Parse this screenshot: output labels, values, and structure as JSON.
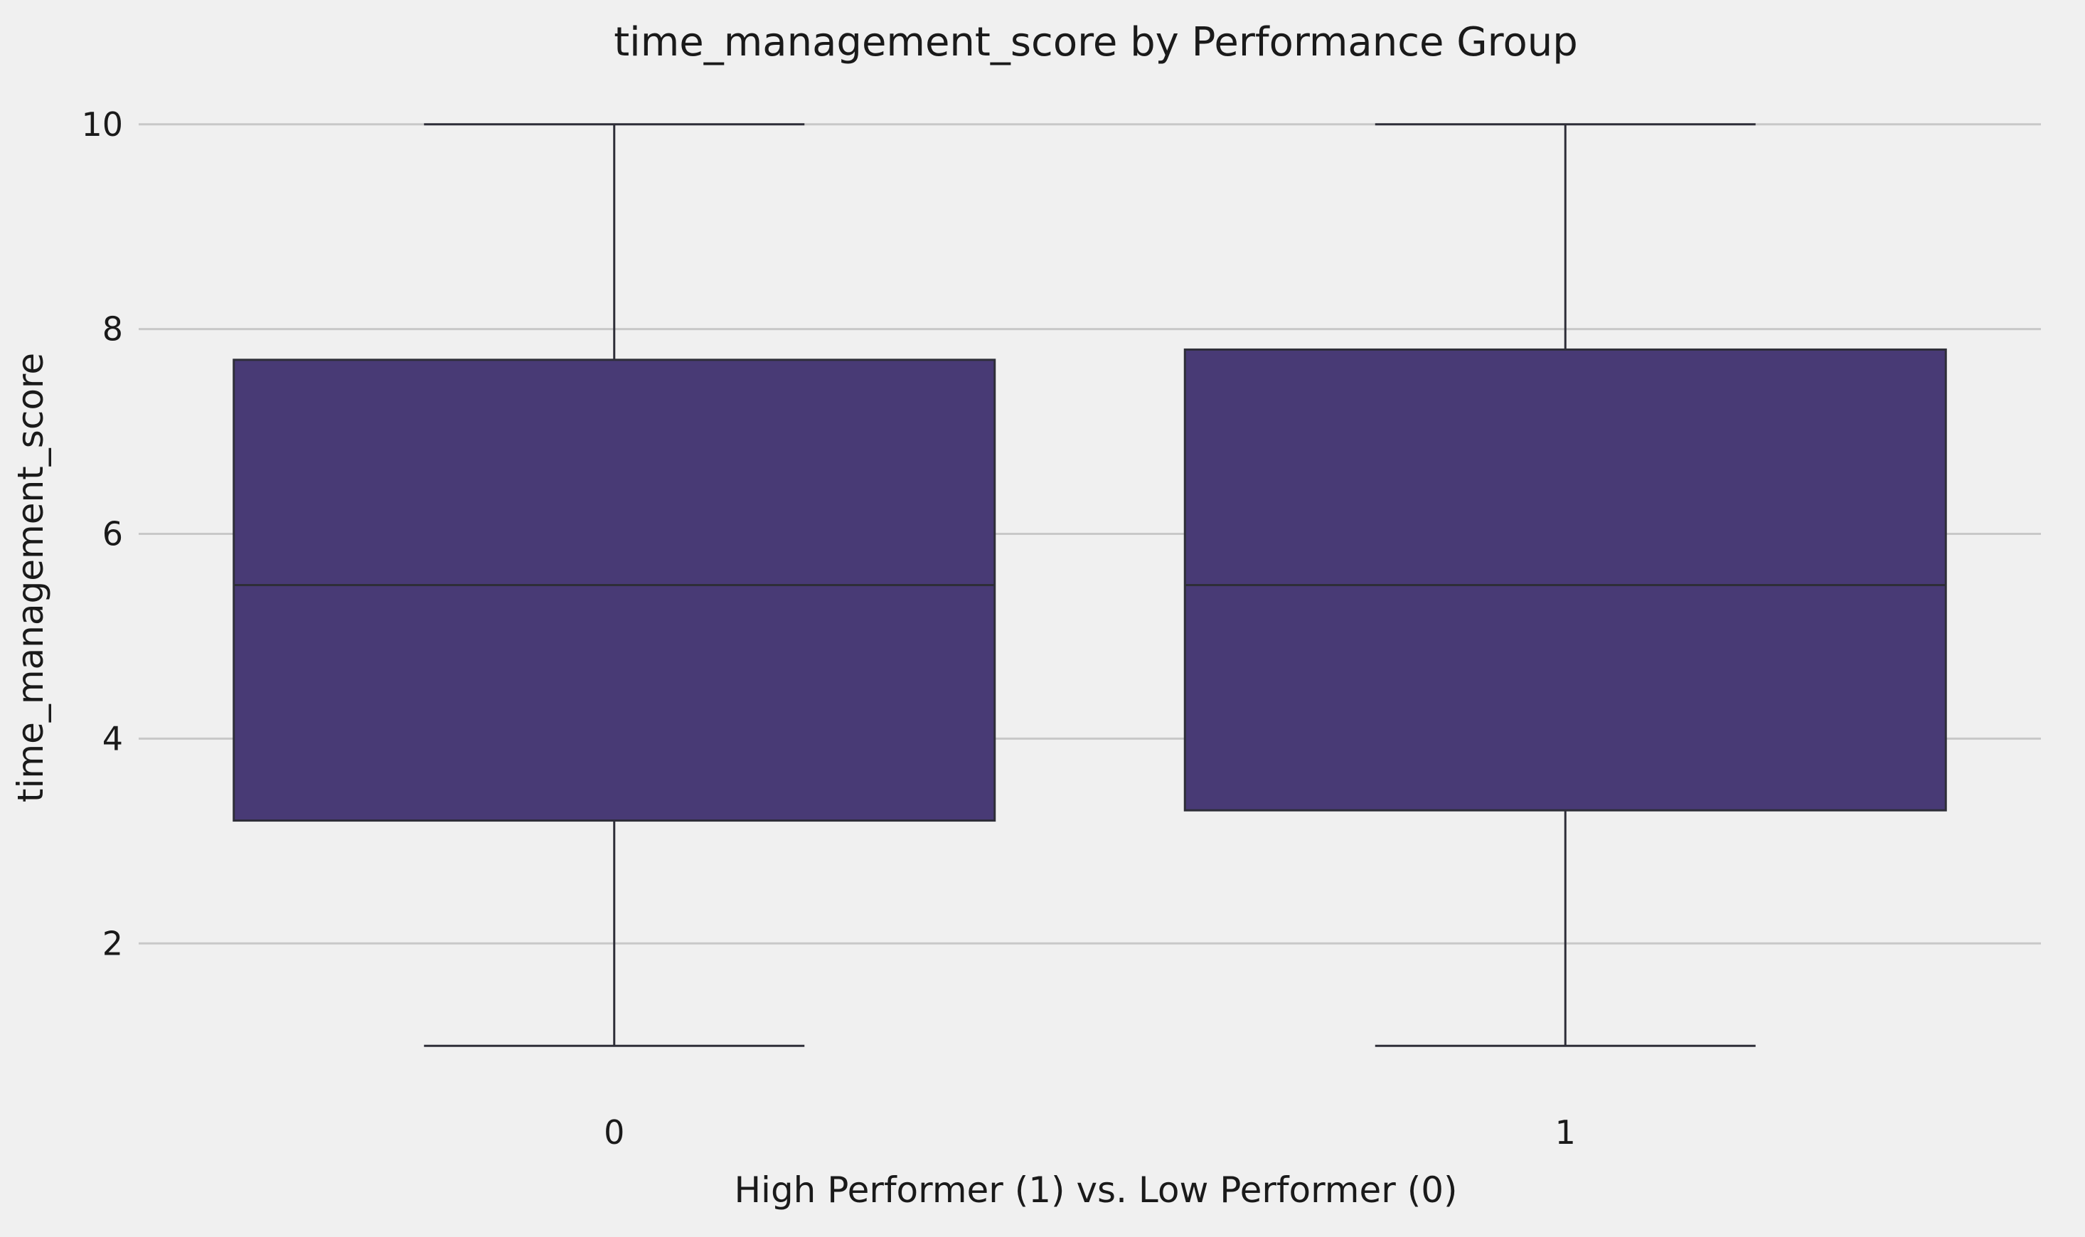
{
  "chart_data": {
    "type": "box",
    "title": "time_management_score by Performance Group",
    "xlabel": "High Performer (1) vs. Low Performer (0)",
    "ylabel": "time_management_score",
    "categories": [
      "0",
      "1"
    ],
    "boxes": [
      {
        "category": "0",
        "whisker_low": 1.0,
        "q1": 3.2,
        "median": 5.5,
        "q3": 7.7,
        "whisker_high": 10.0
      },
      {
        "category": "1",
        "whisker_low": 1.0,
        "q1": 3.3,
        "median": 5.5,
        "q3": 7.8,
        "whisker_high": 10.0
      }
    ],
    "y_ticks": [
      2,
      4,
      6,
      8,
      10
    ],
    "ylim": [
      0.55,
      10.45
    ],
    "grid": "horizontal",
    "legend": "none",
    "colors": {
      "box_fill": "#483a75",
      "box_edge": "#2e2e38",
      "grid": "#c8c8c8",
      "background": "#f0f0f0"
    }
  }
}
